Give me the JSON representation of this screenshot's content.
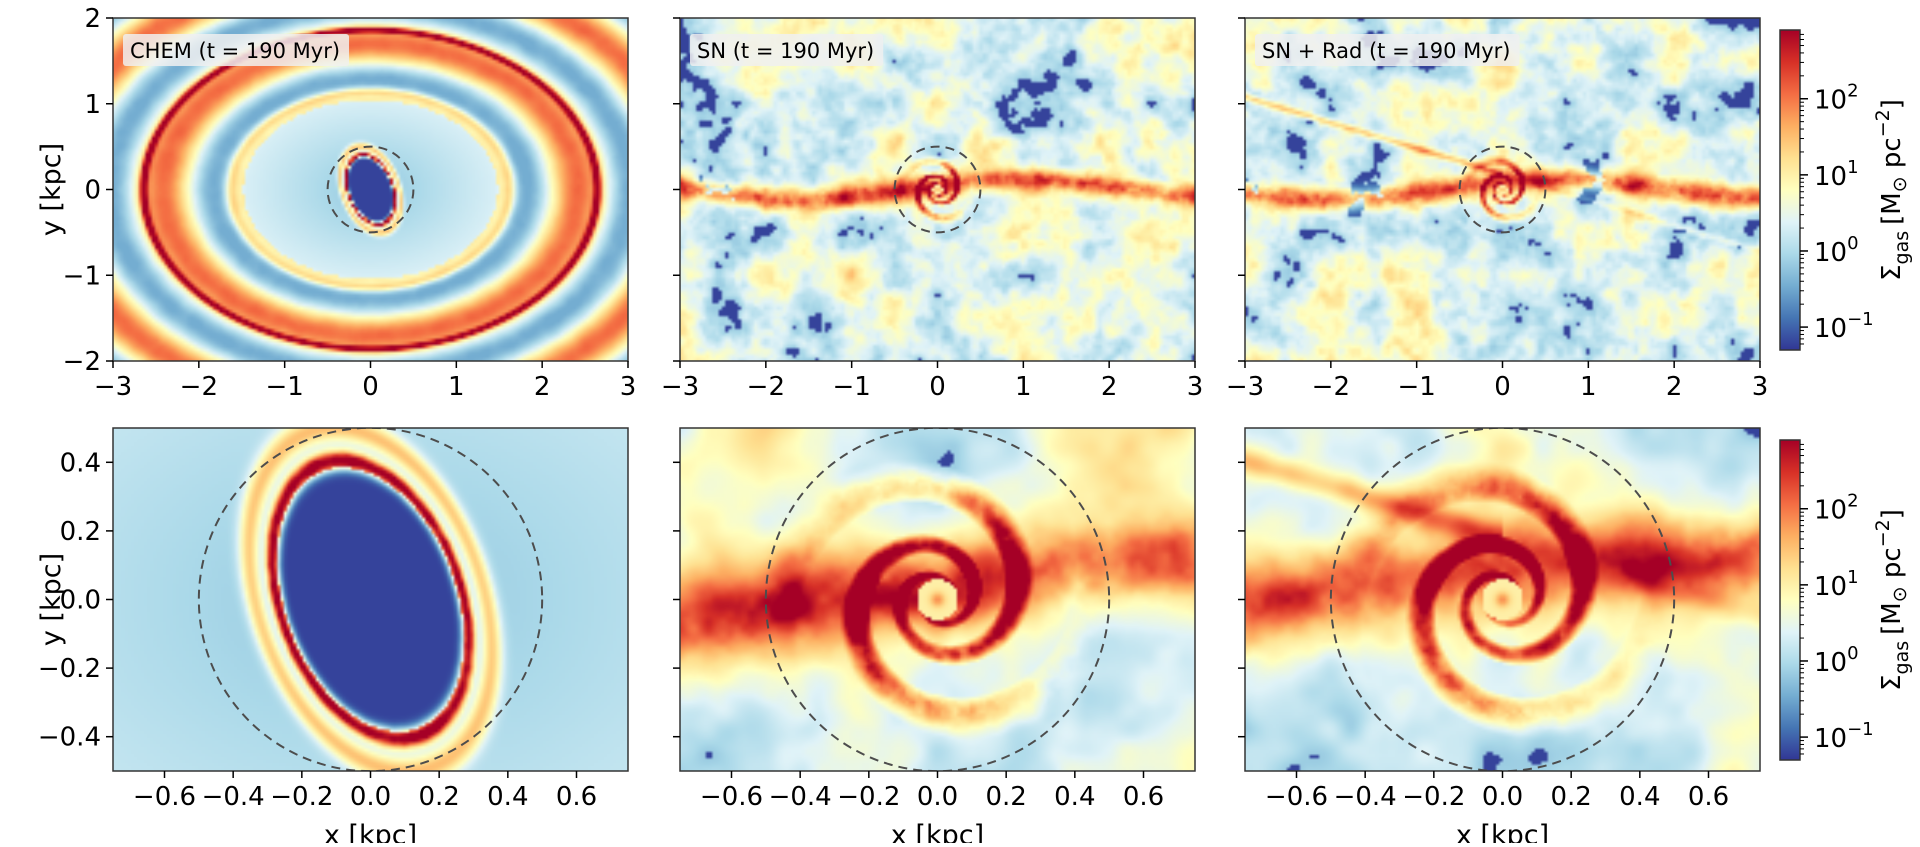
{
  "figure": {
    "colormap": [
      "#313695",
      "#4575b4",
      "#74add1",
      "#abd9e9",
      "#e0f3f8",
      "#ffffbf",
      "#fee090",
      "#fdae61",
      "#f46d43",
      "#d73027",
      "#a50026"
    ],
    "frame_color": "#333333",
    "circle_color": "#4d4d4d",
    "label_bg": "#f0f0f0"
  },
  "chart_data": [
    {
      "id": "top-left",
      "type": "heatmap",
      "title": "CHEM (t = 190 Myr)",
      "model": "CHEM",
      "xlabel": "",
      "ylabel": "y [kpc]",
      "xlim": [
        -3,
        3
      ],
      "ylim": [
        -2,
        2
      ],
      "xticks": [
        -3,
        -2,
        -1,
        0,
        1,
        2,
        3
      ],
      "yticks": [
        -2,
        -1,
        0,
        1,
        2
      ],
      "xtick_labels": [
        "−3",
        "−2",
        "−1",
        "0",
        "1",
        "2",
        "3"
      ],
      "ytick_labels": [
        "−2",
        "−1",
        "0",
        "1",
        "2"
      ],
      "show_yticklabels": true,
      "circle_radius_kpc": 0.5
    },
    {
      "id": "top-center",
      "type": "heatmap",
      "title": "SN (t = 190 Myr)",
      "model": "SN",
      "xlabel": "",
      "ylabel": "",
      "xlim": [
        -3,
        3
      ],
      "ylim": [
        -2,
        2
      ],
      "xticks": [
        -3,
        -2,
        -1,
        0,
        1,
        2,
        3
      ],
      "yticks": [
        -2,
        -1,
        0,
        1,
        2
      ],
      "xtick_labels": [
        "−3",
        "−2",
        "−1",
        "0",
        "1",
        "2",
        "3"
      ],
      "ytick_labels": [],
      "show_yticklabels": false,
      "circle_radius_kpc": 0.5
    },
    {
      "id": "top-right",
      "type": "heatmap",
      "title": "SN + Rad (t = 190 Myr)",
      "model": "SNRAD",
      "xlabel": "",
      "ylabel": "",
      "xlim": [
        -3,
        3
      ],
      "ylim": [
        -2,
        2
      ],
      "xticks": [
        -3,
        -2,
        -1,
        0,
        1,
        2,
        3
      ],
      "yticks": [
        -2,
        -1,
        0,
        1,
        2
      ],
      "xtick_labels": [
        "−3",
        "−2",
        "−1",
        "0",
        "1",
        "2",
        "3"
      ],
      "ytick_labels": [],
      "show_yticklabels": false,
      "circle_radius_kpc": 0.5
    },
    {
      "id": "bottom-left",
      "type": "heatmap",
      "title": "",
      "model": "CHEM",
      "xlabel": "x [kpc]",
      "ylabel": "y [kpc]",
      "xlim": [
        -0.75,
        0.75
      ],
      "ylim": [
        -0.5,
        0.5
      ],
      "xticks": [
        -0.6,
        -0.4,
        -0.2,
        0.0,
        0.2,
        0.4,
        0.6
      ],
      "yticks": [
        -0.4,
        -0.2,
        0.0,
        0.2,
        0.4
      ],
      "xtick_labels": [
        "−0.6",
        "−0.4",
        "−0.2",
        "0.0",
        "0.2",
        "0.4",
        "0.6"
      ],
      "ytick_labels": [
        "−0.4",
        "−0.2",
        "0.0",
        "0.2",
        "0.4"
      ],
      "show_yticklabels": true,
      "circle_radius_kpc": 0.5
    },
    {
      "id": "bottom-center",
      "type": "heatmap",
      "title": "",
      "model": "SN",
      "xlabel": "x [kpc]",
      "ylabel": "",
      "xlim": [
        -0.75,
        0.75
      ],
      "ylim": [
        -0.5,
        0.5
      ],
      "xticks": [
        -0.6,
        -0.4,
        -0.2,
        0.0,
        0.2,
        0.4,
        0.6
      ],
      "yticks": [
        -0.4,
        -0.2,
        0.0,
        0.2,
        0.4
      ],
      "xtick_labels": [
        "−0.6",
        "−0.4",
        "−0.2",
        "0.0",
        "0.2",
        "0.4",
        "0.6"
      ],
      "ytick_labels": [],
      "show_yticklabels": false,
      "circle_radius_kpc": 0.5
    },
    {
      "id": "bottom-right",
      "type": "heatmap",
      "title": "",
      "model": "SNRAD",
      "xlabel": "x [kpc]",
      "ylabel": "",
      "xlim": [
        -0.75,
        0.75
      ],
      "ylim": [
        -0.5,
        0.5
      ],
      "xticks": [
        -0.6,
        -0.4,
        -0.2,
        0.0,
        0.2,
        0.4,
        0.6
      ],
      "yticks": [
        -0.4,
        -0.2,
        0.0,
        0.2,
        0.4
      ],
      "xtick_labels": [
        "−0.6",
        "−0.4",
        "−0.2",
        "0.0",
        "0.2",
        "0.4",
        "0.6"
      ],
      "ytick_labels": [],
      "show_yticklabels": false,
      "circle_radius_kpc": 0.5
    }
  ],
  "colorbars": [
    {
      "id": "colorbar-top",
      "label_prefix": "Σ",
      "label_sub": "gas",
      "label_units": "[M",
      "label_sun": "⊙",
      "label_pc": " pc",
      "label_exp": "−2",
      "label_close": "]",
      "scale": "log",
      "range": [
        0.05,
        800
      ],
      "ticks": [
        0.1,
        1,
        10,
        100
      ],
      "tick_bases": [
        "10",
        "10",
        "10",
        "10"
      ],
      "tick_exps": [
        "−1",
        "0",
        "1",
        "2"
      ]
    },
    {
      "id": "colorbar-bottom",
      "label_prefix": "Σ",
      "label_sub": "gas",
      "label_units": "[M",
      "label_sun": "⊙",
      "label_pc": " pc",
      "label_exp": "−2",
      "label_close": "]",
      "scale": "log",
      "range": [
        0.05,
        800
      ],
      "ticks": [
        0.1,
        1,
        10,
        100
      ],
      "tick_bases": [
        "10",
        "10",
        "10",
        "10"
      ],
      "tick_exps": [
        "−1",
        "0",
        "1",
        "2"
      ]
    }
  ]
}
